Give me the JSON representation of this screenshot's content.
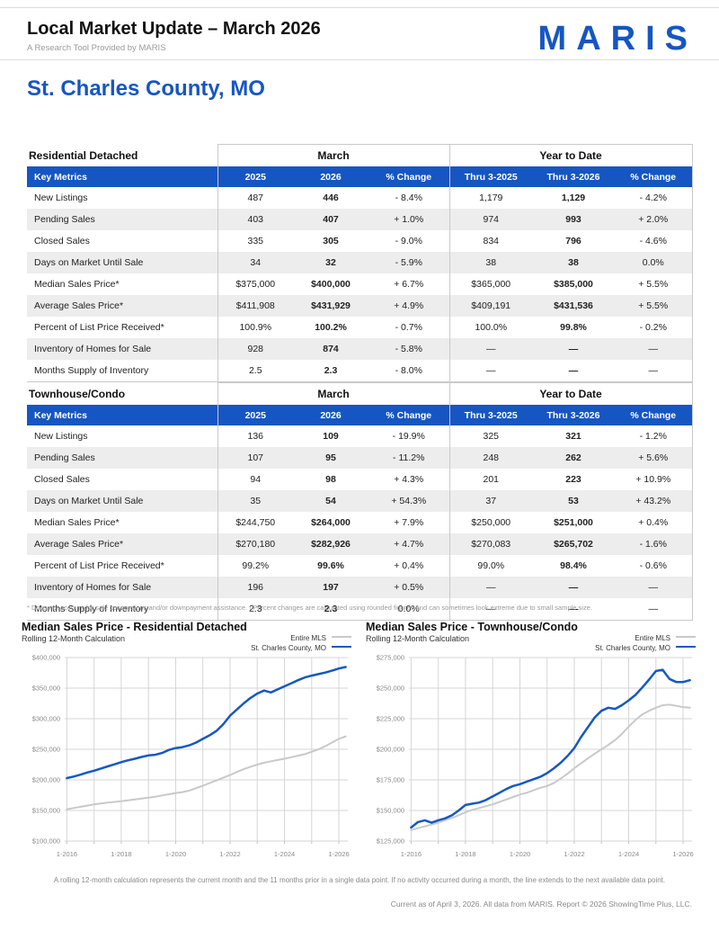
{
  "header": {
    "title": "Local Market Update – March 2026",
    "subtitle": "A Research Tool Provided by MARIS",
    "logo": "MARIS",
    "region": "St. Charles County, MO",
    "accent_color": "#1656c2"
  },
  "tables": [
    {
      "section": "Residential Detached",
      "group1": "March",
      "group2": "Year to Date",
      "columns": [
        "Key Metrics",
        "2025",
        "2026",
        "% Change",
        "Thru 3-2025",
        "Thru 3-2026",
        "% Change"
      ],
      "rows": [
        [
          "New Listings",
          "487",
          "446",
          "- 8.4%",
          "1,179",
          "1,129",
          "- 4.2%"
        ],
        [
          "Pending Sales",
          "403",
          "407",
          "+ 1.0%",
          "974",
          "993",
          "+ 2.0%"
        ],
        [
          "Closed Sales",
          "335",
          "305",
          "- 9.0%",
          "834",
          "796",
          "- 4.6%"
        ],
        [
          "Days on Market Until Sale",
          "34",
          "32",
          "- 5.9%",
          "38",
          "38",
          "0.0%"
        ],
        [
          "Median Sales Price*",
          "$375,000",
          "$400,000",
          "+ 6.7%",
          "$365,000",
          "$385,000",
          "+ 5.5%"
        ],
        [
          "Average Sales Price*",
          "$411,908",
          "$431,929",
          "+ 4.9%",
          "$409,191",
          "$431,536",
          "+ 5.5%"
        ],
        [
          "Percent of List Price Received*",
          "100.9%",
          "100.2%",
          "- 0.7%",
          "100.0%",
          "99.8%",
          "- 0.2%"
        ],
        [
          "Inventory of Homes for Sale",
          "928",
          "874",
          "- 5.8%",
          "—",
          "—",
          "—"
        ],
        [
          "Months Supply of Inventory",
          "2.5",
          "2.3",
          "- 8.0%",
          "—",
          "—",
          "—"
        ]
      ]
    },
    {
      "section": "Townhouse/Condo",
      "group1": "March",
      "group2": "Year to Date",
      "columns": [
        "Key Metrics",
        "2025",
        "2026",
        "% Change",
        "Thru 3-2025",
        "Thru 3-2026",
        "% Change"
      ],
      "rows": [
        [
          "New Listings",
          "136",
          "109",
          "- 19.9%",
          "325",
          "321",
          "- 1.2%"
        ],
        [
          "Pending Sales",
          "107",
          "95",
          "- 11.2%",
          "248",
          "262",
          "+ 5.6%"
        ],
        [
          "Closed Sales",
          "94",
          "98",
          "+ 4.3%",
          "201",
          "223",
          "+ 10.9%"
        ],
        [
          "Days on Market Until Sale",
          "35",
          "54",
          "+ 54.3%",
          "37",
          "53",
          "+ 43.2%"
        ],
        [
          "Median Sales Price*",
          "$244,750",
          "$264,000",
          "+ 7.9%",
          "$250,000",
          "$251,000",
          "+ 0.4%"
        ],
        [
          "Average Sales Price*",
          "$270,180",
          "$282,926",
          "+ 4.7%",
          "$270,083",
          "$265,702",
          "- 1.6%"
        ],
        [
          "Percent of List Price Received*",
          "99.2%",
          "99.6%",
          "+ 0.4%",
          "99.0%",
          "98.4%",
          "- 0.6%"
        ],
        [
          "Inventory of Homes for Sale",
          "196",
          "197",
          "+ 0.5%",
          "—",
          "—",
          "—"
        ],
        [
          "Months Supply of Inventory",
          "2.3",
          "2.3",
          "0.0%",
          "—",
          "—",
          "—"
        ]
      ]
    }
  ],
  "table_footnote": "* Does not account for sale concessions and/or downpayment assistance. | Percent changes are calculated using rounded figures and can sometimes look extreme due to small sample size.",
  "chart_data": [
    {
      "type": "line",
      "title": "Median Sales Price - Residential Detached",
      "subtitle": "Rolling 12-Month Calculation",
      "legend_position": "top-right",
      "grid": true,
      "xlim": [
        2015.92,
        2026.33
      ],
      "ylim": [
        100000,
        400000
      ],
      "yticks": [
        100000,
        150000,
        200000,
        250000,
        300000,
        350000,
        400000
      ],
      "ytick_labels": [
        "$100,000",
        "$150,000",
        "$200,000",
        "$250,000",
        "$300,000",
        "$350,000",
        "$400,000"
      ],
      "xticks": [
        2016,
        2018,
        2020,
        2022,
        2024,
        2026
      ],
      "xtick_labels": [
        "1-2016",
        "1-2018",
        "1-2020",
        "1-2022",
        "1-2024",
        "1-2026"
      ],
      "x": [
        2016.0,
        2016.25,
        2016.5,
        2016.75,
        2017.0,
        2017.25,
        2017.5,
        2017.75,
        2018.0,
        2018.25,
        2018.5,
        2018.75,
        2019.0,
        2019.25,
        2019.5,
        2019.75,
        2020.0,
        2020.25,
        2020.5,
        2020.75,
        2021.0,
        2021.25,
        2021.5,
        2021.75,
        2022.0,
        2022.25,
        2022.5,
        2022.75,
        2023.0,
        2023.25,
        2023.5,
        2023.75,
        2024.0,
        2024.25,
        2024.5,
        2024.75,
        2025.0,
        2025.25,
        2025.5,
        2025.75,
        2026.0,
        2026.25
      ],
      "series": [
        {
          "name": "Entire MLS",
          "color": "#c9c9c9",
          "width": 2,
          "values": [
            152000,
            154000,
            156000,
            158000,
            160000,
            161500,
            163000,
            164000,
            165000,
            166500,
            168000,
            169500,
            171000,
            172500,
            174500,
            176500,
            178500,
            180000,
            182500,
            186500,
            190500,
            195000,
            199000,
            203500,
            208000,
            213000,
            217500,
            221500,
            225000,
            228000,
            230500,
            232500,
            234500,
            237000,
            239500,
            242000,
            246000,
            250000,
            255000,
            261000,
            267000,
            271000
          ]
        },
        {
          "name": "St. Charles County, MO",
          "color": "#1658c2",
          "width": 2.5,
          "values": [
            203000,
            205500,
            208500,
            212000,
            215000,
            218500,
            222000,
            225500,
            229000,
            232000,
            234500,
            237500,
            240000,
            241000,
            244000,
            249000,
            252000,
            253500,
            256500,
            261000,
            267000,
            273000,
            280000,
            291000,
            305000,
            315000,
            325000,
            334000,
            341000,
            346000,
            343000,
            348000,
            353000,
            358000,
            363000,
            367500,
            370500,
            373000,
            375500,
            378500,
            382000,
            384500
          ]
        }
      ]
    },
    {
      "type": "line",
      "title": "Median Sales Price - Townhouse/Condo",
      "subtitle": "Rolling 12-Month Calculation",
      "legend_position": "top-right",
      "grid": true,
      "xlim": [
        2015.92,
        2026.33
      ],
      "ylim": [
        125000,
        275000
      ],
      "yticks": [
        125000,
        150000,
        175000,
        200000,
        225000,
        250000,
        275000
      ],
      "ytick_labels": [
        "$125,000",
        "$150,000",
        "$175,000",
        "$200,000",
        "$225,000",
        "$250,000",
        "$275,000"
      ],
      "xticks": [
        2016,
        2018,
        2020,
        2022,
        2024,
        2026
      ],
      "xtick_labels": [
        "1-2016",
        "1-2018",
        "1-2020",
        "1-2022",
        "1-2024",
        "1-2026"
      ],
      "x": [
        2016.0,
        2016.25,
        2016.5,
        2016.75,
        2017.0,
        2017.25,
        2017.5,
        2017.75,
        2018.0,
        2018.25,
        2018.5,
        2018.75,
        2019.0,
        2019.25,
        2019.5,
        2019.75,
        2020.0,
        2020.25,
        2020.5,
        2020.75,
        2021.0,
        2021.25,
        2021.5,
        2021.75,
        2022.0,
        2022.25,
        2022.5,
        2022.75,
        2023.0,
        2023.25,
        2023.5,
        2023.75,
        2024.0,
        2024.25,
        2024.5,
        2024.75,
        2025.0,
        2025.25,
        2025.5,
        2025.75,
        2026.0,
        2026.25
      ],
      "series": [
        {
          "name": "Entire MLS",
          "color": "#c9c9c9",
          "width": 2,
          "values": [
            134000,
            135500,
            137000,
            138500,
            140000,
            142000,
            144000,
            146000,
            148500,
            150500,
            152000,
            153500,
            155000,
            157000,
            159000,
            161000,
            163000,
            164500,
            166500,
            168500,
            170000,
            172500,
            176000,
            180000,
            184500,
            188500,
            192500,
            196500,
            200000,
            203500,
            207500,
            212500,
            218500,
            224000,
            228500,
            231500,
            234000,
            236000,
            236500,
            235500,
            234500,
            234000
          ]
        },
        {
          "name": "St. Charles County, MO",
          "color": "#1658c2",
          "width": 2.5,
          "values": [
            136000,
            140500,
            142000,
            140000,
            142000,
            143500,
            146000,
            150000,
            154500,
            155500,
            156500,
            158500,
            161500,
            164500,
            167500,
            170000,
            171500,
            173500,
            175500,
            177500,
            180500,
            184500,
            189000,
            194500,
            201000,
            210000,
            218000,
            226000,
            231500,
            234000,
            233000,
            236000,
            240000,
            244500,
            250500,
            257000,
            264000,
            265000,
            257500,
            255000,
            255000,
            256500
          ]
        }
      ]
    }
  ],
  "chart_footnote": "A rolling 12-month calculation represents the current month and the 11 months prior in a single data point. If no activity occurred during a month, the line extends to the next available data point.",
  "footer": {
    "current_as_of": "Current as of April 3, 2026. All data from MARIS. Report © 2026 ShowingTime Plus, LLC."
  }
}
